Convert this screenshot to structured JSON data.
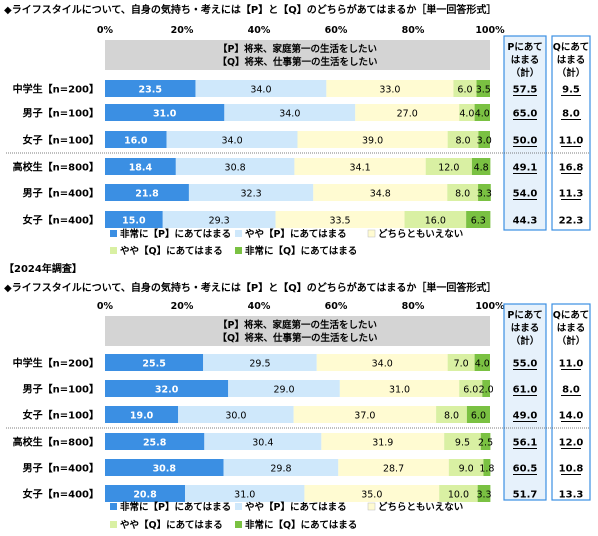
{
  "colors": {
    "very_p": "#3b8fe3",
    "some_p": "#cfe8fb",
    "neither": "#fffbd2",
    "some_q": "#d9f0a3",
    "very_q": "#7ac142",
    "pbox_bg": "#e6f1fb",
    "pbox_border": "#3b8fe3",
    "sum_underline": "#2a6db5",
    "header_bg": "#d4d4d4",
    "divider": "#555555"
  },
  "chart_data": [
    {
      "type": "bar",
      "stacked": true,
      "orientation": "horizontal",
      "title": "◆ライフスタイルについて、自身の気持ち・考えには【P】と【Q】のどちらがあてはまるか［単一回答形式］",
      "note": "",
      "statement_p": "【P】将来、家庭第一の生活をしたい",
      "statement_q": "【Q】将来、仕事第一の生活をしたい",
      "x_ticks": [
        "0%",
        "20%",
        "40%",
        "60%",
        "80%",
        "100%"
      ],
      "xlim": [
        0,
        100
      ],
      "grid": false,
      "legend_position": "bottom",
      "series": [
        {
          "name": "非常に【P】にあてはまる"
        },
        {
          "name": "やや【P】にあてはまる"
        },
        {
          "name": "どちらともいえない"
        },
        {
          "name": "やや【Q】にあてはまる"
        },
        {
          "name": "非常に【Q】にあてはまる"
        }
      ],
      "sum_p_header": "Pにあてはまる（計）",
      "sum_q_header": "Qにあてはまる（計）",
      "rows": [
        {
          "label": "中学生【n=200】",
          "values": [
            23.5,
            34.0,
            33.0,
            6.0,
            3.5
          ],
          "labels": [
            "23.5",
            "34.0",
            "33.0",
            "6.0",
            "3.5"
          ],
          "sum_p": "57.5",
          "sum_q": "9.5",
          "underline": true
        },
        {
          "label": "男子【n=100】",
          "values": [
            31.0,
            34.0,
            27.0,
            4.0,
            4.0
          ],
          "labels": [
            "31.0",
            "34.0",
            "27.0",
            "4.0",
            "4.0"
          ],
          "sum_p": "65.0",
          "sum_q": "8.0",
          "underline": true
        },
        {
          "label": "女子【n=100】",
          "values": [
            16.0,
            34.0,
            39.0,
            8.0,
            3.0
          ],
          "labels": [
            "16.0",
            "34.0",
            "39.0",
            "8.0",
            "3.0"
          ],
          "sum_p": "50.0",
          "sum_q": "11.0",
          "underline": true
        },
        {
          "label": "高校生【n=800】",
          "values": [
            18.4,
            30.8,
            34.1,
            12.0,
            4.8
          ],
          "labels": [
            "18.4",
            "30.8",
            "34.1",
            "12.0",
            "4.8"
          ],
          "sum_p": "49.1",
          "sum_q": "16.8",
          "underline": true
        },
        {
          "label": "男子【n=400】",
          "values": [
            21.8,
            32.3,
            34.8,
            8.0,
            3.3
          ],
          "labels": [
            "21.8",
            "32.3",
            "34.8",
            "8.0",
            "3.3"
          ],
          "sum_p": "54.0",
          "sum_q": "11.3",
          "underline": true
        },
        {
          "label": "女子【n=400】",
          "values": [
            15.0,
            29.3,
            33.5,
            16.0,
            6.3
          ],
          "labels": [
            "15.0",
            "29.3",
            "33.5",
            "16.0",
            "6.3"
          ],
          "sum_p": "44.3",
          "sum_q": "22.3",
          "underline": false
        }
      ]
    },
    {
      "type": "bar",
      "stacked": true,
      "orientation": "horizontal",
      "title": "◆ライフスタイルについて、自身の気持ち・考えには【P】と【Q】のどちらがあてはまるか［単一回答形式］",
      "note": "【2024年調査】",
      "statement_p": "【P】将来、家庭第一の生活をしたい",
      "statement_q": "【Q】将来、仕事第一の生活をしたい",
      "x_ticks": [
        "0%",
        "20%",
        "40%",
        "60%",
        "80%",
        "100%"
      ],
      "xlim": [
        0,
        100
      ],
      "grid": false,
      "legend_position": "bottom",
      "series": [
        {
          "name": "非常に【P】にあてはまる"
        },
        {
          "name": "やや【P】にあてはまる"
        },
        {
          "name": "どちらともいえない"
        },
        {
          "name": "やや【Q】にあてはまる"
        },
        {
          "name": "非常に【Q】にあてはまる"
        }
      ],
      "sum_p_header": "Pにあてはまる（計）",
      "sum_q_header": "Qにあてはまる（計）",
      "rows": [
        {
          "label": "中学生【n=200】",
          "values": [
            25.5,
            29.5,
            34.0,
            7.0,
            4.0
          ],
          "labels": [
            "25.5",
            "29.5",
            "34.0",
            "7.0",
            "4.0"
          ],
          "sum_p": "55.0",
          "sum_q": "11.0",
          "underline": true
        },
        {
          "label": "男子【n=100】",
          "values": [
            32.0,
            29.0,
            31.0,
            6.0,
            2.0
          ],
          "labels": [
            "32.0",
            "29.0",
            "31.0",
            "6.0",
            "2.0"
          ],
          "sum_p": "61.0",
          "sum_q": "8.0",
          "underline": true
        },
        {
          "label": "女子【n=100】",
          "values": [
            19.0,
            30.0,
            37.0,
            8.0,
            6.0
          ],
          "labels": [
            "19.0",
            "30.0",
            "37.0",
            "8.0",
            "6.0"
          ],
          "sum_p": "49.0",
          "sum_q": "14.0",
          "underline": true
        },
        {
          "label": "高校生【n=800】",
          "values": [
            25.8,
            30.4,
            31.9,
            9.5,
            2.5
          ],
          "labels": [
            "25.8",
            "30.4",
            "31.9",
            "9.5",
            "2.5"
          ],
          "sum_p": "56.1",
          "sum_q": "12.0",
          "underline": true
        },
        {
          "label": "男子【n=400】",
          "values": [
            30.8,
            29.8,
            28.7,
            9.0,
            1.8
          ],
          "labels": [
            "30.8",
            "29.8",
            "28.7",
            "9.0",
            "1.8"
          ],
          "sum_p": "60.5",
          "sum_q": "10.8",
          "underline": true
        },
        {
          "label": "女子【n=400】",
          "values": [
            20.8,
            31.0,
            35.0,
            10.0,
            3.3
          ],
          "labels": [
            "20.8",
            "31.0",
            "35.0",
            "10.0",
            "3.3"
          ],
          "sum_p": "51.7",
          "sum_q": "13.3",
          "underline": false
        }
      ]
    }
  ]
}
